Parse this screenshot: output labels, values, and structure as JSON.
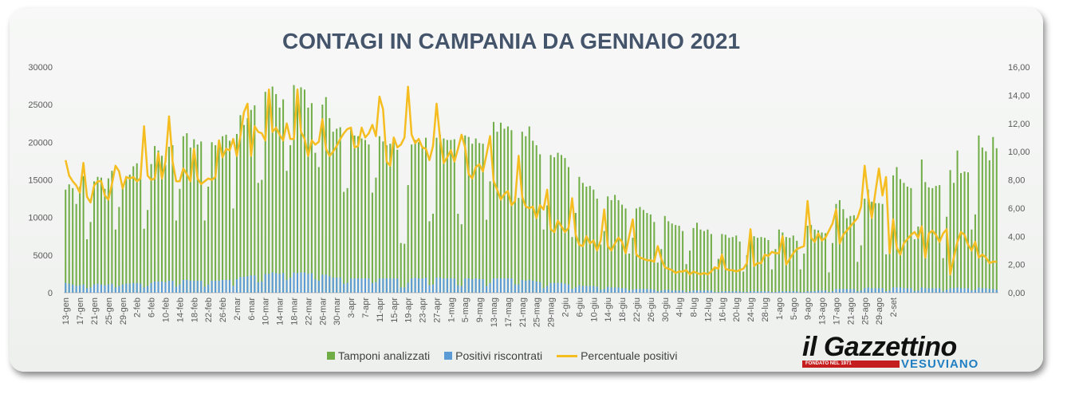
{
  "chart_data": {
    "type": "bar+line",
    "title": "CONTAGI IN CAMPANIA DA GENNAIO 2021",
    "xlabel": "",
    "ylabel": "",
    "ylim": [
      0,
      30000
    ],
    "y2lim": [
      0,
      16
    ],
    "y_ticks": [
      "0",
      "5000",
      "10000",
      "15000",
      "20000",
      "25000",
      "30000"
    ],
    "y2_ticks": [
      "0,00",
      "2,00",
      "4,00",
      "6,00",
      "8,00",
      "10,00",
      "12,00",
      "14,00",
      "16,00"
    ],
    "x_tick_labels": [
      "13-gen",
      "17-gen",
      "21-gen",
      "25-gen",
      "29-gen",
      "2-feb",
      "6-feb",
      "10-feb",
      "14-feb",
      "18-feb",
      "22-feb",
      "26-feb",
      "2-mar",
      "6-mar",
      "10-mar",
      "14-mar",
      "18-mar",
      "22-mar",
      "26-mar",
      "30-mar",
      "3-apr",
      "7-apr",
      "11-apr",
      "15-apr",
      "19-apr",
      "23-apr",
      "27-apr",
      "1-mag",
      "5-mag",
      "9-mag",
      "13-mag",
      "17-mag",
      "21-mag",
      "25-mag",
      "29-mag",
      "2-giu",
      "6-giu",
      "10-giu",
      "14-giu",
      "18-giu",
      "22-giu",
      "26-giu",
      "30-giu",
      "4-lug",
      "8-lug",
      "12-lug",
      "16-lug",
      "20-lug",
      "24-lug",
      "28-lug",
      "1-ago",
      "5-ago",
      "9-ago",
      "13-ago",
      "17-ago",
      "21-ago",
      "25-ago",
      "29-ago",
      "2-set"
    ],
    "x_tick_step_days": 4,
    "series": [
      {
        "name": "Tamponi analizzati",
        "type": "bar",
        "axis": "left",
        "color": "#70ad47",
        "values": [
          13700,
          14400,
          13900,
          11800,
          14100,
          15500,
          7100,
          9400,
          14800,
          15400,
          15300,
          13800,
          15200,
          16200,
          8400,
          11400,
          14400,
          15500,
          15700,
          16800,
          17200,
          15200,
          8500,
          11000,
          17100,
          19500,
          18900,
          18200,
          17000,
          19400,
          19600,
          9600,
          13800,
          20800,
          21200,
          19300,
          20400,
          19700,
          20100,
          9600,
          14100,
          20000,
          19600,
          20300,
          20800,
          21000,
          20200,
          11200,
          21100,
          23600,
          22300,
          23200,
          24300,
          24900,
          14600,
          15000,
          26700,
          25300,
          27400,
          26400,
          24600,
          25700,
          16200,
          19600,
          27600,
          25900,
          27300,
          27000,
          24600,
          25200,
          18600,
          16700,
          25000,
          26000,
          23200,
          21400,
          21800,
          22000,
          13400,
          13900,
          21800,
          20900,
          20800,
          20500,
          20300,
          19700,
          13300,
          15300,
          20800,
          20100,
          19600,
          19800,
          20000,
          19000,
          6600,
          6500,
          14300,
          19700,
          20300,
          20000,
          19500,
          20600,
          9500,
          10500,
          20600,
          21000,
          20500,
          20300,
          20300,
          20400,
          10500,
          9100,
          20900,
          20700,
          19800,
          20500,
          19900,
          19800,
          9700,
          14800,
          22700,
          21400,
          22600,
          21800,
          22100,
          21600,
          12800,
          12600,
          21400,
          20800,
          22100,
          20200,
          19600,
          18400,
          8400,
          11600,
          18300,
          18000,
          18600,
          18300,
          17900,
          16700,
          7400,
          10600,
          15400,
          14600,
          14100,
          14200,
          13700,
          12500,
          6400,
          8200,
          12800,
          12300,
          13000,
          12300,
          11700,
          11200,
          5200,
          7300,
          11200,
          11400,
          11000,
          10600,
          10400,
          9400,
          4000,
          5800,
          10200,
          9500,
          9200,
          9000,
          8900,
          8200,
          3800,
          5600,
          8600,
          9300,
          8400,
          8200,
          8400,
          7800,
          3300,
          4500,
          7800,
          7700,
          7300,
          7400,
          7600,
          6800,
          2800,
          5000,
          7500,
          7500,
          7300,
          7400,
          7300,
          7000,
          3100,
          5800,
          8400,
          8000,
          7400,
          7300,
          7600,
          6900,
          3100,
          5200,
          8900,
          9000,
          8400,
          8300,
          8000,
          7900,
          2700,
          6600,
          11800,
          12300,
          11100,
          9900,
          10200,
          10300,
          4100,
          6300,
          12500,
          13700,
          12100,
          11900,
          11900,
          11800,
          5100,
          6600,
          15600,
          16700,
          15100,
          14600,
          14100,
          13900,
          7100,
          8800,
          17700,
          14700,
          14000,
          13900,
          14200,
          14300,
          4600,
          10100,
          16300,
          14600,
          18900,
          15900,
          16100,
          16000,
          8400,
          10400,
          20900,
          19300,
          18800,
          17600,
          20700,
          19200
        ]
      },
      {
        "name": "Positivi riscontrati",
        "type": "bar",
        "axis": "left",
        "color": "#5b9bd5",
        "values": [
          1300,
          1200,
          1100,
          900,
          1000,
          1100,
          600,
          700,
          1100,
          1200,
          1100,
          1000,
          1100,
          1200,
          700,
          900,
          1100,
          1200,
          1200,
          1300,
          1300,
          1200,
          700,
          900,
          1300,
          1500,
          1500,
          1500,
          1400,
          1600,
          1600,
          800,
          1100,
          1700,
          1700,
          1600,
          1600,
          1600,
          1600,
          800,
          1100,
          1600,
          1600,
          1600,
          1700,
          1700,
          1700,
          900,
          1800,
          2100,
          2100,
          2200,
          2300,
          2300,
          1400,
          1500,
          2500,
          2500,
          2700,
          2600,
          2500,
          2600,
          1700,
          2000,
          2700,
          2600,
          2700,
          2700,
          2500,
          2600,
          1800,
          1600,
          2400,
          2400,
          2200,
          2000,
          2000,
          2000,
          1200,
          1300,
          1900,
          1900,
          1900,
          1900,
          1900,
          1900,
          1300,
          1400,
          1900,
          1900,
          1900,
          1900,
          1900,
          1900,
          700,
          700,
          1300,
          1900,
          2000,
          1900,
          1900,
          2000,
          1000,
          1100,
          2000,
          2000,
          1900,
          1900,
          1900,
          1900,
          1000,
          900,
          1900,
          1900,
          1800,
          1900,
          1800,
          1800,
          900,
          1300,
          1900,
          1900,
          1900,
          1900,
          1900,
          1900,
          1100,
          1100,
          1700,
          1600,
          1700,
          1600,
          1500,
          1400,
          600,
          900,
          1300,
          1300,
          1300,
          1300,
          1200,
          1100,
          500,
          700,
          1000,
          900,
          900,
          900,
          900,
          800,
          400,
          500,
          800,
          700,
          700,
          700,
          600,
          600,
          300,
          400,
          500,
          500,
          500,
          500,
          500,
          400,
          200,
          300,
          400,
          400,
          300,
          300,
          300,
          300,
          100,
          200,
          300,
          300,
          300,
          300,
          300,
          300,
          100,
          100,
          200,
          200,
          200,
          200,
          200,
          200,
          100,
          100,
          200,
          200,
          200,
          200,
          200,
          200,
          100,
          100,
          200,
          200,
          200,
          200,
          200,
          200,
          100,
          100,
          200,
          200,
          200,
          300,
          300,
          300,
          100,
          200,
          500,
          500,
          500,
          500,
          500,
          500,
          200,
          300,
          600,
          700,
          600,
          600,
          600,
          600,
          200,
          300,
          700,
          700,
          700,
          600,
          600,
          600,
          200,
          300,
          700,
          600,
          600,
          600,
          600,
          600,
          200,
          400,
          600,
          600,
          700,
          600,
          600,
          600,
          300,
          400,
          700,
          600,
          600,
          500,
          500,
          400
        ]
      },
      {
        "name": "Percentuale positivi",
        "type": "line",
        "axis": "right",
        "color": "#f5bd1f",
        "values": [
          9.4,
          8.3,
          7.9,
          7.6,
          7.1,
          9.2,
          6.8,
          6.4,
          7.6,
          7.9,
          7.9,
          6.9,
          6.6,
          7.7,
          9.0,
          8.6,
          7.4,
          8.2,
          8.1,
          8.2,
          7.9,
          8.1,
          11.8,
          8.3,
          8.0,
          8.1,
          9.9,
          8.1,
          9.3,
          12.5,
          9.3,
          7.9,
          7.9,
          8.8,
          8.4,
          7.9,
          10.2,
          8.1,
          7.7,
          7.9,
          8.1,
          8.0,
          8.2,
          10.8,
          9.6,
          10.2,
          10.1,
          10.9,
          9.7,
          11.1,
          12.8,
          13.4,
          9.7,
          11.8,
          11.4,
          11.3,
          10.8,
          14.4,
          11.4,
          11.7,
          11.2,
          10.8,
          12.0,
          10.9,
          10.9,
          14.4,
          11.4,
          10.9,
          9.7,
          10.8,
          10.5,
          10.7,
          12.3,
          10.2,
          9.7,
          10.0,
          10.4,
          10.9,
          11.3,
          11.6,
          11.7,
          10.3,
          10.4,
          11.7,
          11.0,
          11.3,
          11.9,
          11.1,
          13.9,
          13.0,
          9.3,
          9.0,
          11.0,
          10.3,
          10.5,
          11.0,
          14.6,
          11.2,
          10.6,
          10.9,
          10.3,
          10.2,
          9.4,
          10.4,
          13.4,
          10.9,
          9.2,
          9.6,
          10.1,
          9.3,
          10.2,
          11.2,
          10.3,
          8.4,
          8.1,
          8.9,
          9.1,
          8.6,
          9.8,
          11.1,
          7.9,
          7.3,
          6.6,
          7.0,
          7.2,
          6.2,
          6.5,
          9.7,
          6.8,
          6.1,
          6.0,
          6.1,
          5.3,
          6.2,
          5.9,
          7.3,
          4.5,
          4.3,
          5.1,
          4.7,
          4.3,
          4.6,
          6.7,
          4.1,
          3.4,
          3.3,
          4.0,
          3.5,
          3.7,
          3.0,
          3.7,
          5.9,
          3.3,
          3.0,
          3.5,
          3.9,
          3.6,
          2.8,
          4.0,
          5.2,
          2.7,
          2.5,
          2.4,
          2.3,
          2.3,
          2.2,
          3.3,
          2.4,
          1.8,
          1.7,
          1.6,
          1.4,
          1.5,
          1.5,
          1.6,
          1.3,
          1.5,
          1.4,
          1.3,
          1.4,
          1.3,
          1.5,
          1.8,
          1.7,
          2.7,
          1.7,
          1.6,
          1.6,
          1.5,
          1.6,
          1.7,
          2.1,
          4.5,
          1.9,
          2.1,
          2.1,
          2.7,
          2.6,
          2.9,
          2.8,
          2.8,
          4.0,
          2.0,
          2.4,
          2.8,
          3.1,
          3.2,
          3.3,
          6.5,
          3.9,
          3.6,
          4.2,
          3.7,
          3.9,
          4.4,
          4.9,
          5.9,
          3.5,
          4.1,
          4.4,
          4.7,
          5.0,
          5.3,
          6.1,
          9.0,
          6.8,
          5.3,
          7.1,
          8.8,
          6.9,
          8.2,
          2.8,
          5.2,
          3.2,
          2.7,
          3.5,
          3.8,
          4.1,
          4.3,
          3.9,
          4.7,
          2.5,
          4.2,
          4.4,
          4.1,
          3.6,
          4.2,
          4.5,
          1.3,
          2.5,
          3.6,
          4.3,
          4.1,
          3.4,
          3.0,
          3.6,
          2.5,
          2.7,
          2.5,
          2.1,
          2.2,
          2.2
        ]
      }
    ],
    "legend_position": "bottom",
    "grid": false
  },
  "branding": {
    "logo_main": "il Gazzettino",
    "logo_tagline": "FONDATO NEL 1971",
    "logo_sub": "VESUVIANO"
  }
}
